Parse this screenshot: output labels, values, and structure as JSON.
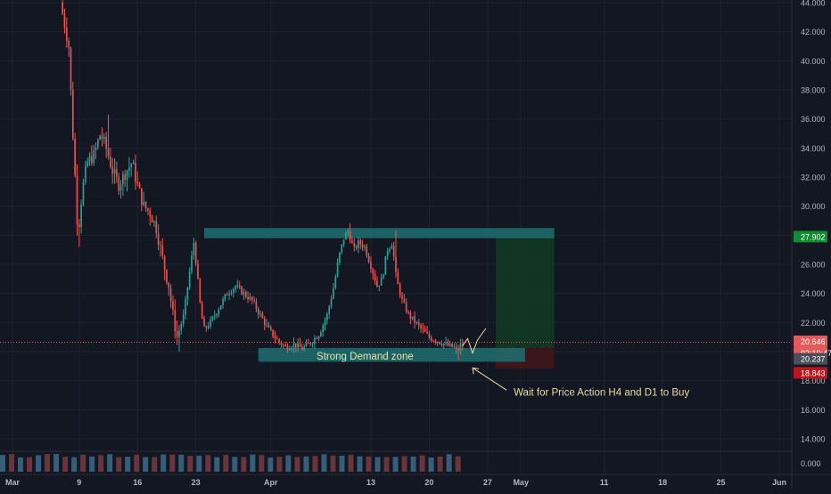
{
  "chart_data": {
    "type": "candlestick",
    "y_ticks": [
      "44.000",
      "42.000",
      "40.000",
      "38.000",
      "36.000",
      "34.000",
      "32.000",
      "30.000",
      "28.000",
      "26.000",
      "24.000",
      "22.000",
      "20.000",
      "18.000",
      "16.000",
      "14.000"
    ],
    "ylim": [
      12.2,
      44.5
    ],
    "x_ticks": [
      {
        "label": "Mar",
        "day": 0
      },
      {
        "label": "9",
        "day": 8
      },
      {
        "label": "16",
        "day": 15
      },
      {
        "label": "23",
        "day": 22
      },
      {
        "label": "Apr",
        "day": 31
      },
      {
        "label": "13",
        "day": 43
      },
      {
        "label": "20",
        "day": 50
      },
      {
        "label": "27",
        "day": 57
      },
      {
        "label": "May",
        "day": 61
      },
      {
        "label": "11",
        "day": 71
      },
      {
        "label": "18",
        "day": 78
      },
      {
        "label": "25",
        "day": 85
      },
      {
        "label": "Jun",
        "day": 92
      }
    ],
    "xlim": [
      -1.5,
      93.5
    ],
    "volume_tick": "0.000",
    "price_labels": {
      "target": "27.902",
      "last": "20.646",
      "countdown": "02:10:47",
      "entry": "20.237",
      "stop": "18.843"
    },
    "levels": {
      "target": 27.902,
      "last": 20.646,
      "entry": 20.237,
      "stop": 18.843
    },
    "price_path": [
      [
        6.0,
        44.0
      ],
      [
        6.5,
        42.5
      ],
      [
        7.0,
        41.0
      ],
      [
        7.4,
        36.0
      ],
      [
        7.8,
        31.5
      ],
      [
        8.1,
        28.0
      ],
      [
        8.6,
        31.0
      ],
      [
        9.2,
        33.0
      ],
      [
        10.0,
        33.5
      ],
      [
        10.8,
        35.0
      ],
      [
        11.5,
        34.0
      ],
      [
        12.2,
        32.5
      ],
      [
        13.0,
        31.5
      ],
      [
        14.0,
        32.5
      ],
      [
        14.6,
        33.0
      ],
      [
        15.2,
        31.5
      ],
      [
        16.0,
        30.0
      ],
      [
        16.8,
        29.5
      ],
      [
        17.5,
        28.5
      ],
      [
        18.2,
        26.5
      ],
      [
        19.0,
        24.5
      ],
      [
        19.5,
        22.5
      ],
      [
        20.0,
        21.0
      ],
      [
        20.8,
        22.5
      ],
      [
        21.5,
        25.5
      ],
      [
        22.0,
        27.5
      ],
      [
        22.3,
        26.0
      ],
      [
        22.8,
        23.0
      ],
      [
        23.2,
        21.5
      ],
      [
        24.0,
        22.0
      ],
      [
        25.0,
        23.0
      ],
      [
        26.0,
        24.0
      ],
      [
        27.0,
        24.5
      ],
      [
        28.0,
        24.0
      ],
      [
        29.0,
        23.5
      ],
      [
        30.0,
        22.5
      ],
      [
        31.0,
        21.5
      ],
      [
        32.0,
        20.8
      ],
      [
        33.0,
        20.3
      ],
      [
        34.0,
        20.5
      ],
      [
        35.0,
        20.2
      ],
      [
        36.0,
        20.6
      ],
      [
        37.0,
        21.2
      ],
      [
        38.0,
        22.5
      ],
      [
        38.8,
        24.5
      ],
      [
        39.4,
        26.5
      ],
      [
        40.0,
        27.8
      ],
      [
        40.5,
        28.3
      ],
      [
        41.2,
        27.0
      ],
      [
        41.8,
        27.5
      ],
      [
        42.5,
        27.2
      ],
      [
        43.2,
        26.0
      ],
      [
        44.0,
        24.5
      ],
      [
        44.6,
        25.0
      ],
      [
        45.2,
        27.0
      ],
      [
        45.8,
        27.5
      ],
      [
        46.3,
        25.0
      ],
      [
        47.0,
        23.5
      ],
      [
        47.8,
        22.5
      ],
      [
        48.6,
        22.0
      ],
      [
        49.4,
        21.5
      ],
      [
        50.2,
        21.0
      ],
      [
        51.0,
        20.8
      ],
      [
        51.8,
        20.6
      ],
      [
        52.5,
        20.4
      ],
      [
        53.2,
        20.3
      ],
      [
        53.6,
        20.0
      ],
      [
        54.0,
        20.4
      ]
    ],
    "drawing_path": [
      [
        54.0,
        20.4
      ],
      [
        54.6,
        20.9
      ],
      [
        55.2,
        19.9
      ],
      [
        55.8,
        20.8
      ],
      [
        56.8,
        21.6
      ]
    ],
    "demand_zone": {
      "label": "Strong Demand zone",
      "day_start": 29.5,
      "day_end": 61.5,
      "price_top": 20.25,
      "price_bottom": 19.3
    },
    "resistance_zone": {
      "day_start": 23.0,
      "day_end": 65.0,
      "price_top": 28.5,
      "price_bottom": 27.8
    },
    "position": {
      "day_start": 58.0,
      "day_end": 65.0
    },
    "annotation": "Wait for Price Action H4 and D1 to Buy",
    "volume_bars_count": 52
  },
  "colors": {
    "background": "#131722",
    "grid": "#1e2230",
    "axis_text": "#b2b5be",
    "up": "#26a69a",
    "down": "#ef5350",
    "zone": "#1f6f70",
    "zone_text": "#e8e6a8",
    "annotation": "#e8d9a0",
    "target_bg": "#118c2f",
    "last_bg": "#e45a5a",
    "stop_bg": "#c0151b",
    "entry_bg": "#4a4e59",
    "profit": "#123823",
    "loss": "#43161c",
    "dotted": "#e05a5a"
  }
}
